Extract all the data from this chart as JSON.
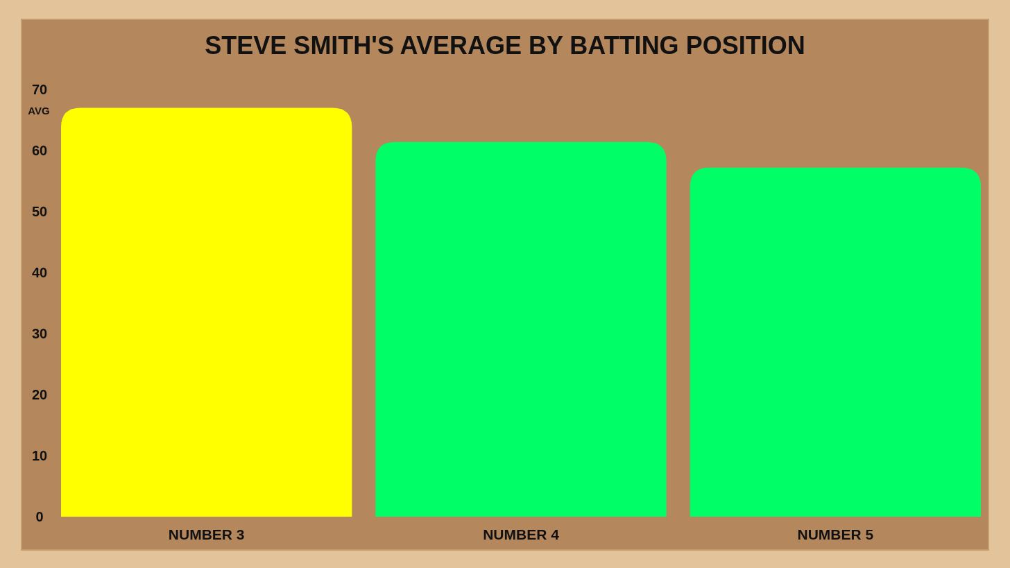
{
  "chart_data": {
    "type": "bar",
    "title": "STEVE SMITH'S AVERAGE BY BATTING POSITION",
    "ylabel": "AVG",
    "categories": [
      "NUMBER 3",
      "NUMBER 4",
      "NUMBER 5"
    ],
    "values": [
      67,
      61.4,
      57.2
    ],
    "colors": [
      "#ffff00",
      "#00ff66",
      "#00ff66"
    ],
    "ylim": [
      0,
      70
    ],
    "yticks": [
      0,
      10,
      20,
      30,
      40,
      50,
      60,
      70
    ],
    "grid": false
  }
}
